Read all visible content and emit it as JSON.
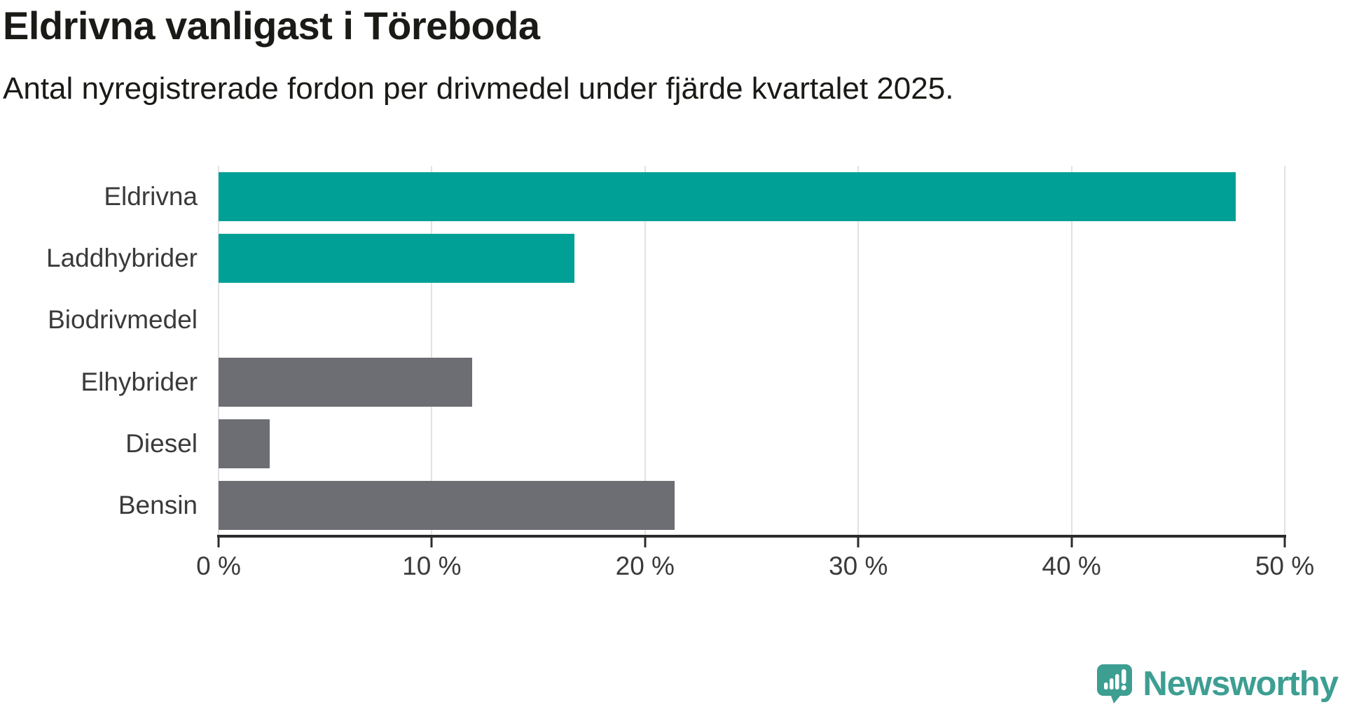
{
  "title": "Eldrivna vanligast i Töreboda",
  "subtitle": "Antal nyregistrerade fordon per drivmedel under fjärde kvartalet 2025.",
  "branding": {
    "name": "Newsworthy",
    "icon": "newsworthy-speech-bubble-chart-icon"
  },
  "colors": {
    "highlight": "#00a096",
    "neutral": "#6d6d74",
    "grid": "#e2e2e2",
    "axis": "#2c2c2c",
    "title_text": "#1a1a17",
    "label_text": "#3a3a3a",
    "logo": "#3d9e92"
  },
  "chart_data": {
    "type": "bar",
    "orientation": "horizontal",
    "title": "Eldrivna vanligast i Töreboda",
    "subtitle": "Antal nyregistrerade fordon per drivmedel under fjärde kvartalet 2025.",
    "categories": [
      "Eldrivna",
      "Laddhybrider",
      "Biodrivmedel",
      "Elhybrider",
      "Diesel",
      "Bensin"
    ],
    "values": [
      47.7,
      16.7,
      0,
      11.9,
      2.4,
      21.4
    ],
    "value_unit": "%",
    "bar_colors": [
      "#00a096",
      "#00a096",
      "#6d6d74",
      "#6d6d74",
      "#6d6d74",
      "#6d6d74"
    ],
    "xlim": [
      0,
      50
    ],
    "x_tick_values": [
      0,
      10,
      20,
      30,
      40,
      50
    ],
    "x_tick_labels": [
      "0 %",
      "10 %",
      "20 %",
      "30 %",
      "40 %",
      "50 %"
    ],
    "grid": true,
    "legend": false,
    "source_branding": "Newsworthy"
  }
}
